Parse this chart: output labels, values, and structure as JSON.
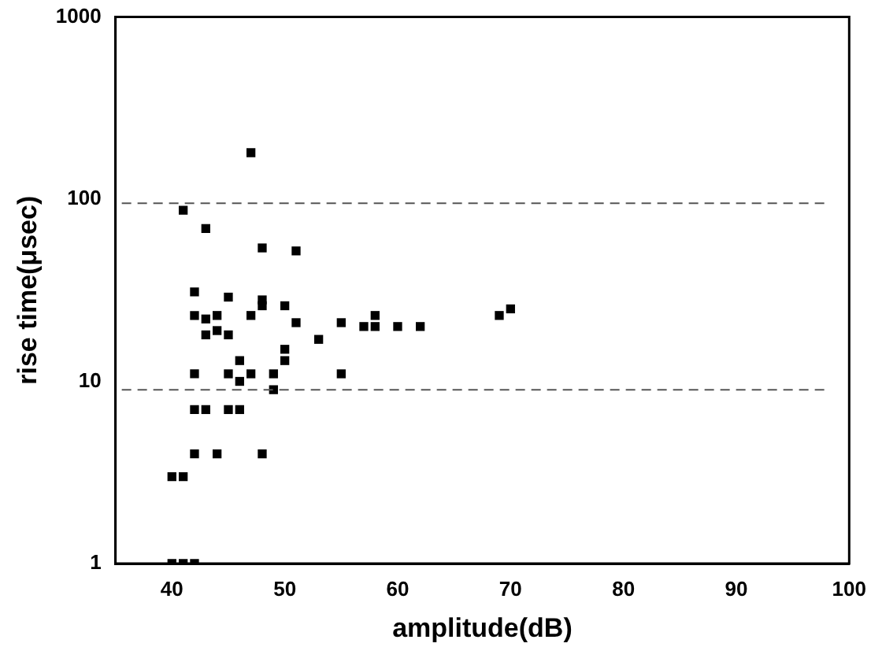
{
  "chart_data": {
    "type": "scatter",
    "xlabel": "amplitude(dB)",
    "ylabel": "rise time(μsec)",
    "xlim": [
      35,
      100
    ],
    "xticks": [
      40,
      50,
      60,
      70,
      80,
      90,
      100
    ],
    "ylim": [
      1,
      1000
    ],
    "yticks": [
      1,
      10,
      100,
      1000
    ],
    "log": "y",
    "grid": false,
    "legend": false,
    "marker": "square",
    "series": [
      {
        "color": "#000000",
        "x": [
          47,
          41,
          43,
          48,
          51,
          42,
          45,
          48,
          48,
          50,
          42,
          43,
          44,
          47,
          44,
          43,
          45,
          51,
          53,
          55,
          57,
          58,
          58,
          60,
          62,
          69,
          70,
          50,
          50,
          42,
          45,
          46,
          46,
          47,
          49,
          49,
          55,
          42,
          43,
          45,
          46,
          42,
          44,
          48,
          40,
          41,
          40,
          41,
          42
        ],
        "values": [
          180,
          87,
          69,
          54,
          52,
          31,
          29,
          28,
          26,
          26,
          23,
          22,
          23,
          23,
          19,
          18,
          18,
          21,
          17,
          21,
          20,
          23,
          20,
          20,
          20,
          23,
          25,
          15,
          13,
          11,
          11,
          13,
          10,
          11,
          11,
          9,
          11,
          7,
          7,
          7,
          7,
          4,
          4,
          4,
          3,
          3,
          1,
          1,
          1
        ]
      }
    ],
    "ref_lines": [
      {
        "axis": "y",
        "value": 95,
        "color": "#555555",
        "line_style": "dashed"
      },
      {
        "axis": "y",
        "value": 9,
        "color": "#555555",
        "line_style": "dashed"
      }
    ]
  }
}
